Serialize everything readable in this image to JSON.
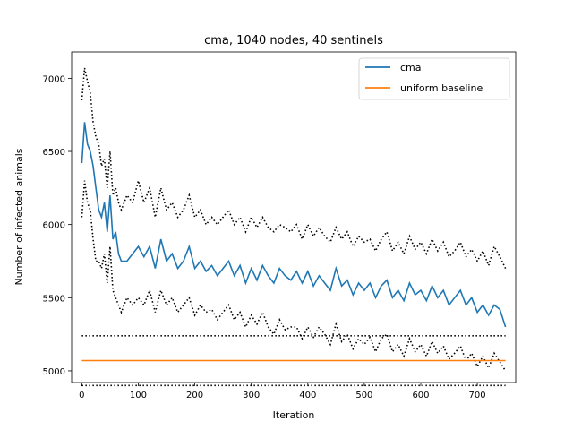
{
  "chart_data": {
    "type": "line",
    "title": "cma, 1040 nodes, 40 sentinels",
    "xlabel": "Iteration",
    "ylabel": "Number of infected animals",
    "xlim": [
      -18,
      768
    ],
    "ylim": [
      4920,
      7180
    ],
    "xticks": [
      0,
      100,
      200,
      300,
      400,
      500,
      600,
      700
    ],
    "yticks": [
      5000,
      5500,
      6000,
      6500,
      7000
    ],
    "grid": false,
    "legend_position": "top-right",
    "colors": {
      "cma": "#1f77b4",
      "uniform_baseline": "#ff7f0e",
      "bounds": "#000000"
    },
    "series": [
      {
        "name": "cma",
        "color": "#1f77b4",
        "style": "solid",
        "x": [
          0,
          5,
          10,
          15,
          20,
          25,
          30,
          35,
          40,
          45,
          50,
          55,
          60,
          65,
          70,
          80,
          90,
          100,
          110,
          120,
          130,
          140,
          150,
          160,
          170,
          180,
          190,
          200,
          210,
          220,
          230,
          240,
          250,
          260,
          270,
          280,
          290,
          300,
          310,
          320,
          330,
          340,
          350,
          360,
          370,
          380,
          390,
          400,
          410,
          420,
          430,
          440,
          450,
          460,
          470,
          480,
          490,
          500,
          510,
          520,
          530,
          540,
          550,
          560,
          570,
          580,
          590,
          600,
          610,
          620,
          630,
          640,
          650,
          660,
          670,
          680,
          690,
          700,
          710,
          720,
          730,
          740,
          750
        ],
        "y": [
          6420,
          6700,
          6550,
          6500,
          6400,
          6250,
          6100,
          6050,
          6150,
          5950,
          6200,
          5900,
          5950,
          5800,
          5750,
          5750,
          5800,
          5850,
          5780,
          5850,
          5700,
          5900,
          5750,
          5800,
          5700,
          5750,
          5850,
          5700,
          5750,
          5680,
          5720,
          5650,
          5700,
          5750,
          5650,
          5720,
          5600,
          5700,
          5620,
          5720,
          5650,
          5600,
          5700,
          5650,
          5620,
          5680,
          5600,
          5680,
          5580,
          5650,
          5600,
          5550,
          5700,
          5580,
          5620,
          5520,
          5600,
          5550,
          5600,
          5500,
          5580,
          5620,
          5500,
          5550,
          5480,
          5600,
          5520,
          5550,
          5480,
          5580,
          5500,
          5550,
          5450,
          5500,
          5550,
          5450,
          5500,
          5400,
          5450,
          5380,
          5450,
          5420,
          5300
        ]
      },
      {
        "name": "uniform baseline",
        "color": "#ff7f0e",
        "style": "solid",
        "x": [
          0,
          750
        ],
        "y": [
          5070,
          5070
        ]
      },
      {
        "color": "#000000",
        "style": "dotted",
        "x": [
          0,
          5,
          10,
          15,
          20,
          25,
          30,
          35,
          40,
          45,
          50,
          55,
          60,
          65,
          70,
          80,
          90,
          100,
          110,
          120,
          130,
          140,
          150,
          160,
          170,
          180,
          190,
          200,
          210,
          220,
          230,
          240,
          250,
          260,
          270,
          280,
          290,
          300,
          310,
          320,
          330,
          340,
          350,
          360,
          370,
          380,
          390,
          400,
          410,
          420,
          430,
          440,
          450,
          460,
          470,
          480,
          490,
          500,
          510,
          520,
          530,
          540,
          550,
          560,
          570,
          580,
          590,
          600,
          610,
          620,
          630,
          640,
          650,
          660,
          670,
          680,
          690,
          700,
          710,
          720,
          730,
          740,
          750
        ],
        "y": [
          6850,
          7070,
          6980,
          6900,
          6700,
          6600,
          6550,
          6400,
          6450,
          6250,
          6500,
          6200,
          6250,
          6150,
          6100,
          6200,
          6150,
          6300,
          6150,
          6250,
          6050,
          6250,
          6100,
          6150,
          6050,
          6100,
          6200,
          6050,
          6100,
          6000,
          6050,
          6000,
          6050,
          6100,
          6000,
          6050,
          5950,
          6050,
          5980,
          6050,
          5980,
          5950,
          6000,
          5980,
          5950,
          6000,
          5900,
          6000,
          5920,
          5980,
          5920,
          5880,
          5980,
          5900,
          5950,
          5850,
          5920,
          5880,
          5900,
          5820,
          5900,
          5950,
          5820,
          5880,
          5800,
          5920,
          5830,
          5880,
          5800,
          5900,
          5820,
          5880,
          5780,
          5820,
          5880,
          5780,
          5830,
          5750,
          5820,
          5720,
          5850,
          5780,
          5700
        ]
      },
      {
        "color": "#000000",
        "style": "dotted",
        "x": [
          0,
          5,
          10,
          15,
          20,
          25,
          30,
          35,
          40,
          45,
          50,
          55,
          60,
          65,
          70,
          80,
          90,
          100,
          110,
          120,
          130,
          140,
          150,
          160,
          170,
          180,
          190,
          200,
          210,
          220,
          230,
          240,
          250,
          260,
          270,
          280,
          290,
          300,
          310,
          320,
          330,
          340,
          350,
          360,
          370,
          380,
          390,
          400,
          410,
          420,
          430,
          440,
          450,
          460,
          470,
          480,
          490,
          500,
          510,
          520,
          530,
          540,
          550,
          560,
          570,
          580,
          590,
          600,
          610,
          620,
          630,
          640,
          650,
          660,
          670,
          680,
          690,
          700,
          710,
          720,
          730,
          740,
          750
        ],
        "y": [
          6050,
          6300,
          6150,
          6100,
          5900,
          5750,
          5750,
          5700,
          5800,
          5600,
          5850,
          5550,
          5500,
          5450,
          5400,
          5500,
          5450,
          5500,
          5450,
          5550,
          5400,
          5550,
          5450,
          5500,
          5400,
          5450,
          5500,
          5380,
          5450,
          5400,
          5420,
          5350,
          5400,
          5450,
          5350,
          5400,
          5300,
          5380,
          5320,
          5400,
          5300,
          5250,
          5350,
          5280,
          5300,
          5300,
          5220,
          5300,
          5230,
          5300,
          5250,
          5180,
          5320,
          5200,
          5250,
          5150,
          5220,
          5180,
          5230,
          5130,
          5220,
          5250,
          5130,
          5180,
          5100,
          5220,
          5130,
          5180,
          5100,
          5200,
          5120,
          5170,
          5080,
          5120,
          5170,
          5070,
          5120,
          5030,
          5100,
          5020,
          5120,
          5060,
          5000
        ]
      },
      {
        "color": "#000000",
        "style": "dotted",
        "x": [
          0,
          750
        ],
        "y": [
          5240,
          5240
        ]
      },
      {
        "color": "#000000",
        "style": "dotted",
        "x": [
          0,
          750
        ],
        "y": [
          4900,
          4900
        ]
      }
    ],
    "legend": [
      "cma",
      "uniform baseline"
    ]
  }
}
